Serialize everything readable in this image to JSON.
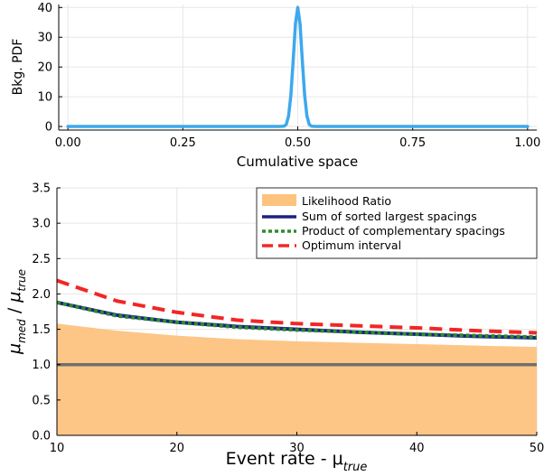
{
  "chart_data": [
    {
      "type": "line",
      "xlabel": "Cumulative space",
      "ylabel": "Bkg. PDF",
      "xlim": [
        -0.02,
        1.02
      ],
      "ylim": [
        -1.2,
        41
      ],
      "xticks": [
        0.0,
        0.25,
        0.5,
        0.75,
        1.0
      ],
      "xtick_labels": [
        "0.00",
        "0.25",
        "0.50",
        "0.75",
        "1.00"
      ],
      "yticks": [
        0,
        10,
        20,
        30,
        40
      ],
      "ytick_labels": [
        "0",
        "10",
        "20",
        "30",
        "40"
      ],
      "grid": true,
      "color": "#3DA8ED",
      "series": [
        {
          "x": [
            0.0,
            0.25,
            0.46,
            0.47,
            0.475,
            0.48,
            0.485,
            0.49,
            0.495,
            0.5,
            0.505,
            0.51,
            0.515,
            0.52,
            0.525,
            0.53,
            0.54,
            0.75,
            1.0
          ],
          "values": [
            0,
            0,
            0,
            0.1,
            0.7,
            3.5,
            10.5,
            22,
            34.5,
            40,
            34.5,
            22,
            10.5,
            3.5,
            0.7,
            0.1,
            0,
            0,
            0
          ]
        }
      ]
    },
    {
      "type": "line",
      "xlabel_main": "Event rate - μ",
      "xlabel_sub": "true",
      "ylabel_parts": [
        {
          "text": "μ",
          "sub": "med"
        },
        {
          "text": " / "
        },
        {
          "text": "μ",
          "sub": "true"
        }
      ],
      "xlim": [
        10,
        50
      ],
      "ylim": [
        0.0,
        3.5
      ],
      "xticks": [
        10,
        20,
        30,
        40,
        50
      ],
      "xtick_labels": [
        "10",
        "20",
        "30",
        "40",
        "50"
      ],
      "yticks": [
        0.0,
        0.5,
        1.0,
        1.5,
        2.0,
        2.5,
        3.0,
        3.5
      ],
      "ytick_labels": [
        "0.0",
        "0.5",
        "1.0",
        "1.5",
        "2.0",
        "2.5",
        "3.0",
        "3.5"
      ],
      "grid": true,
      "legend_position": "top-right",
      "x": [
        10,
        15,
        20,
        25,
        30,
        35,
        40,
        45,
        50
      ],
      "series": [
        {
          "name": "Likelihood Ratio",
          "style": "area",
          "color": "#FDC37F",
          "values": [
            1.58,
            1.48,
            1.41,
            1.36,
            1.33,
            1.31,
            1.29,
            1.27,
            1.25
          ]
        },
        {
          "name": "Sum of sorted largest spacings",
          "style": "solid",
          "color": "#1A237E",
          "values": [
            1.88,
            1.7,
            1.6,
            1.54,
            1.5,
            1.46,
            1.43,
            1.4,
            1.38
          ]
        },
        {
          "name": "Product of complementary spacings",
          "style": "dotted",
          "color": "#2E8B2E",
          "values": [
            1.88,
            1.69,
            1.6,
            1.53,
            1.49,
            1.46,
            1.43,
            1.41,
            1.39
          ]
        },
        {
          "name": "Optimum interval",
          "style": "dashed",
          "color": "#F22626",
          "values": [
            2.19,
            1.9,
            1.74,
            1.63,
            1.58,
            1.55,
            1.52,
            1.48,
            1.45
          ]
        }
      ],
      "reference_line": {
        "y": 1.0,
        "color": "#707070"
      }
    }
  ]
}
